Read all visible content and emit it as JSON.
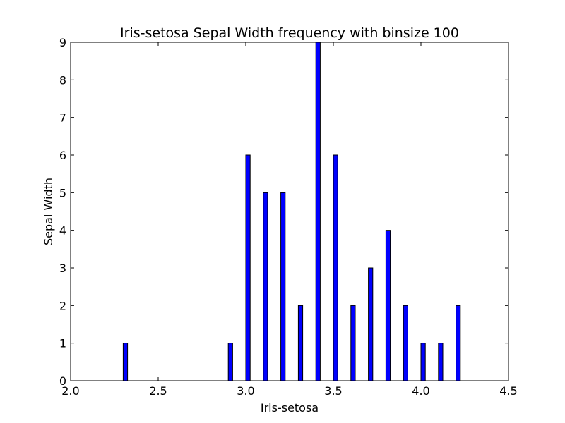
{
  "chart_data": {
    "type": "bar",
    "title": "Iris-setosa Sepal Width frequency with binsize 100",
    "xlabel": "Iris-setosa",
    "ylabel": "Sepal Width",
    "xlim": [
      2.0,
      4.5
    ],
    "ylim": [
      0,
      9
    ],
    "xticks": [
      "2.0",
      "2.5",
      "3.0",
      "3.5",
      "4.0",
      "4.5"
    ],
    "yticks": [
      "0",
      "1",
      "2",
      "3",
      "4",
      "5",
      "6",
      "7",
      "8",
      "9"
    ],
    "bin_width": 0.025,
    "grid": false,
    "bar_color": "#0000ff",
    "x": [
      2.3,
      2.9,
      3.0,
      3.1,
      3.2,
      3.3,
      3.4,
      3.5,
      3.6,
      3.7,
      3.8,
      3.9,
      4.0,
      4.1,
      4.2
    ],
    "values": [
      1,
      1,
      6,
      5,
      5,
      2,
      9,
      6,
      2,
      3,
      4,
      2,
      1,
      1,
      2
    ]
  }
}
